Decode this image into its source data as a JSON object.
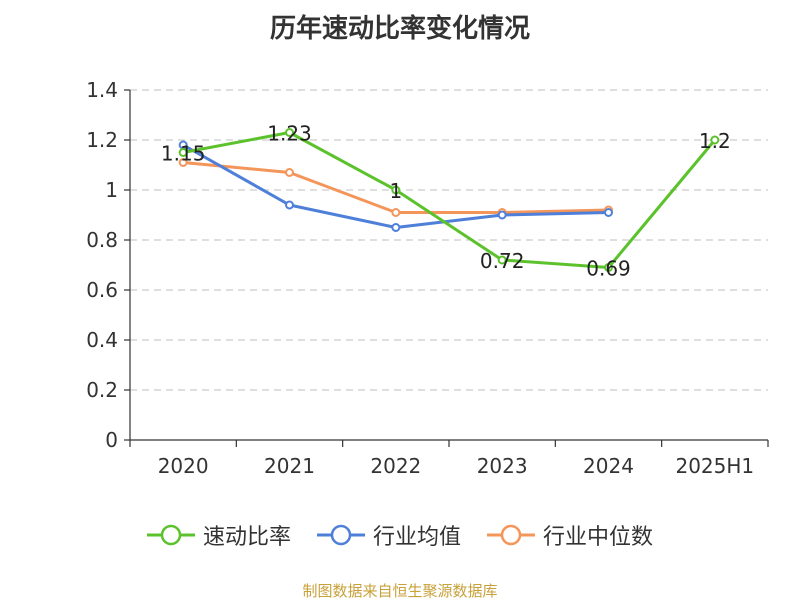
{
  "chart_data": {
    "type": "line",
    "title": "历年速动比率变化情况",
    "categories": [
      "2020",
      "2021",
      "2022",
      "2023",
      "2024",
      "2025H1"
    ],
    "ylim": [
      0,
      1.4
    ],
    "yticks": [
      "0",
      "0.2",
      "0.4",
      "0.6",
      "0.8",
      "1",
      "1.2",
      "1.4"
    ],
    "grid": true,
    "legend_position": "bottom",
    "series": [
      {
        "name": "速动比率",
        "color": "#5cc22c",
        "values": [
          1.15,
          1.23,
          1,
          0.72,
          0.69,
          1.2
        ],
        "labels": [
          "1.15",
          "1.23",
          "1",
          "0.72",
          "0.69",
          "1.2"
        ]
      },
      {
        "name": "行业均值",
        "color": "#4e7fd9",
        "values": [
          1.18,
          0.94,
          0.85,
          0.9,
          0.91,
          null
        ]
      },
      {
        "name": "行业中位数",
        "color": "#f4955a",
        "values": [
          1.11,
          1.07,
          0.91,
          0.91,
          0.92,
          null
        ]
      }
    ]
  },
  "source": "制图数据来自恒生聚源数据库"
}
